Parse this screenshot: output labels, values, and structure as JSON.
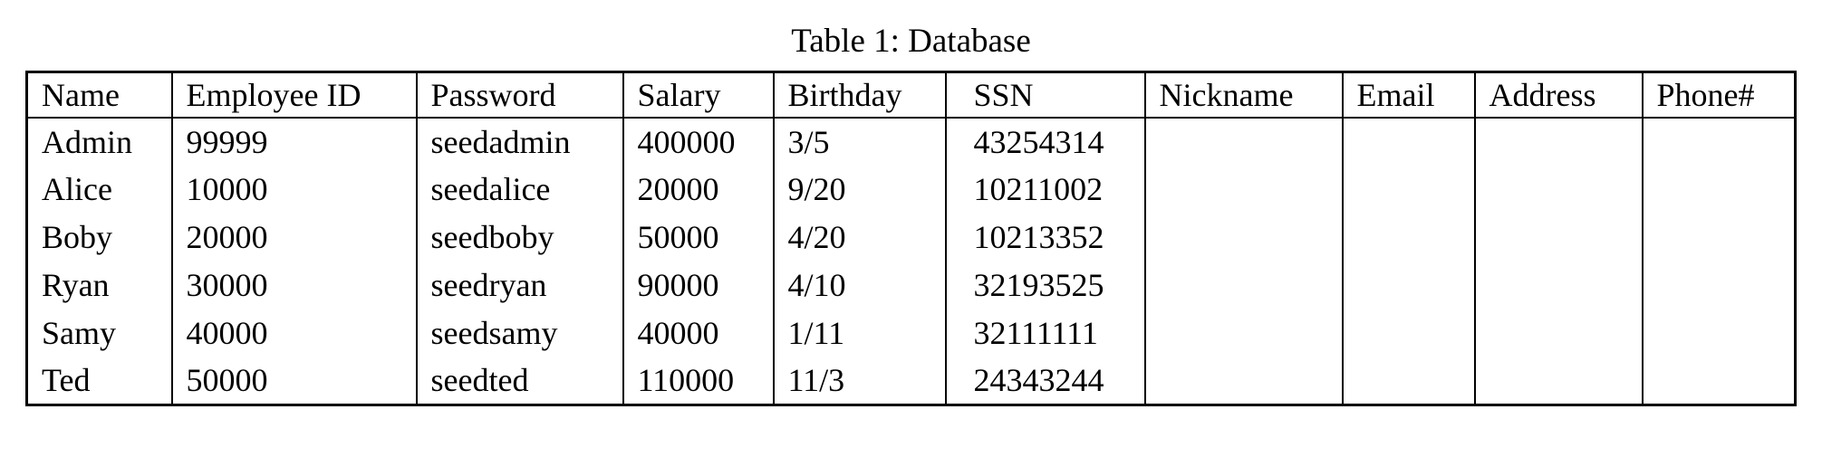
{
  "page": {
    "background": "#ffffff",
    "text_color": "#000000",
    "border_color": "#000000"
  },
  "table": {
    "caption": "Table 1: Database",
    "headers": [
      "Name",
      "Employee ID",
      "Password",
      "Salary",
      "Birthday",
      "SSN",
      "Nickname",
      "Email",
      "Address",
      "Phone#"
    ],
    "rows": [
      [
        "Admin",
        "99999",
        "seedadmin",
        "400000",
        "3/5",
        "43254314",
        "",
        "",
        "",
        ""
      ],
      [
        "Alice",
        "10000",
        "seedalice",
        "20000",
        "9/20",
        "10211002",
        "",
        "",
        "",
        ""
      ],
      [
        "Boby",
        "20000",
        "seedboby",
        "50000",
        "4/20",
        "10213352",
        "",
        "",
        "",
        ""
      ],
      [
        "Ryan",
        "30000",
        "seedryan",
        "90000",
        "4/10",
        "32193525",
        "",
        "",
        "",
        ""
      ],
      [
        "Samy",
        "40000",
        "seedsamy",
        "40000",
        "1/11",
        "32111111",
        "",
        "",
        "",
        ""
      ],
      [
        "Ted",
        "50000",
        "seedted",
        "110000",
        "11/3",
        "24343244",
        "",
        "",
        "",
        ""
      ]
    ]
  }
}
